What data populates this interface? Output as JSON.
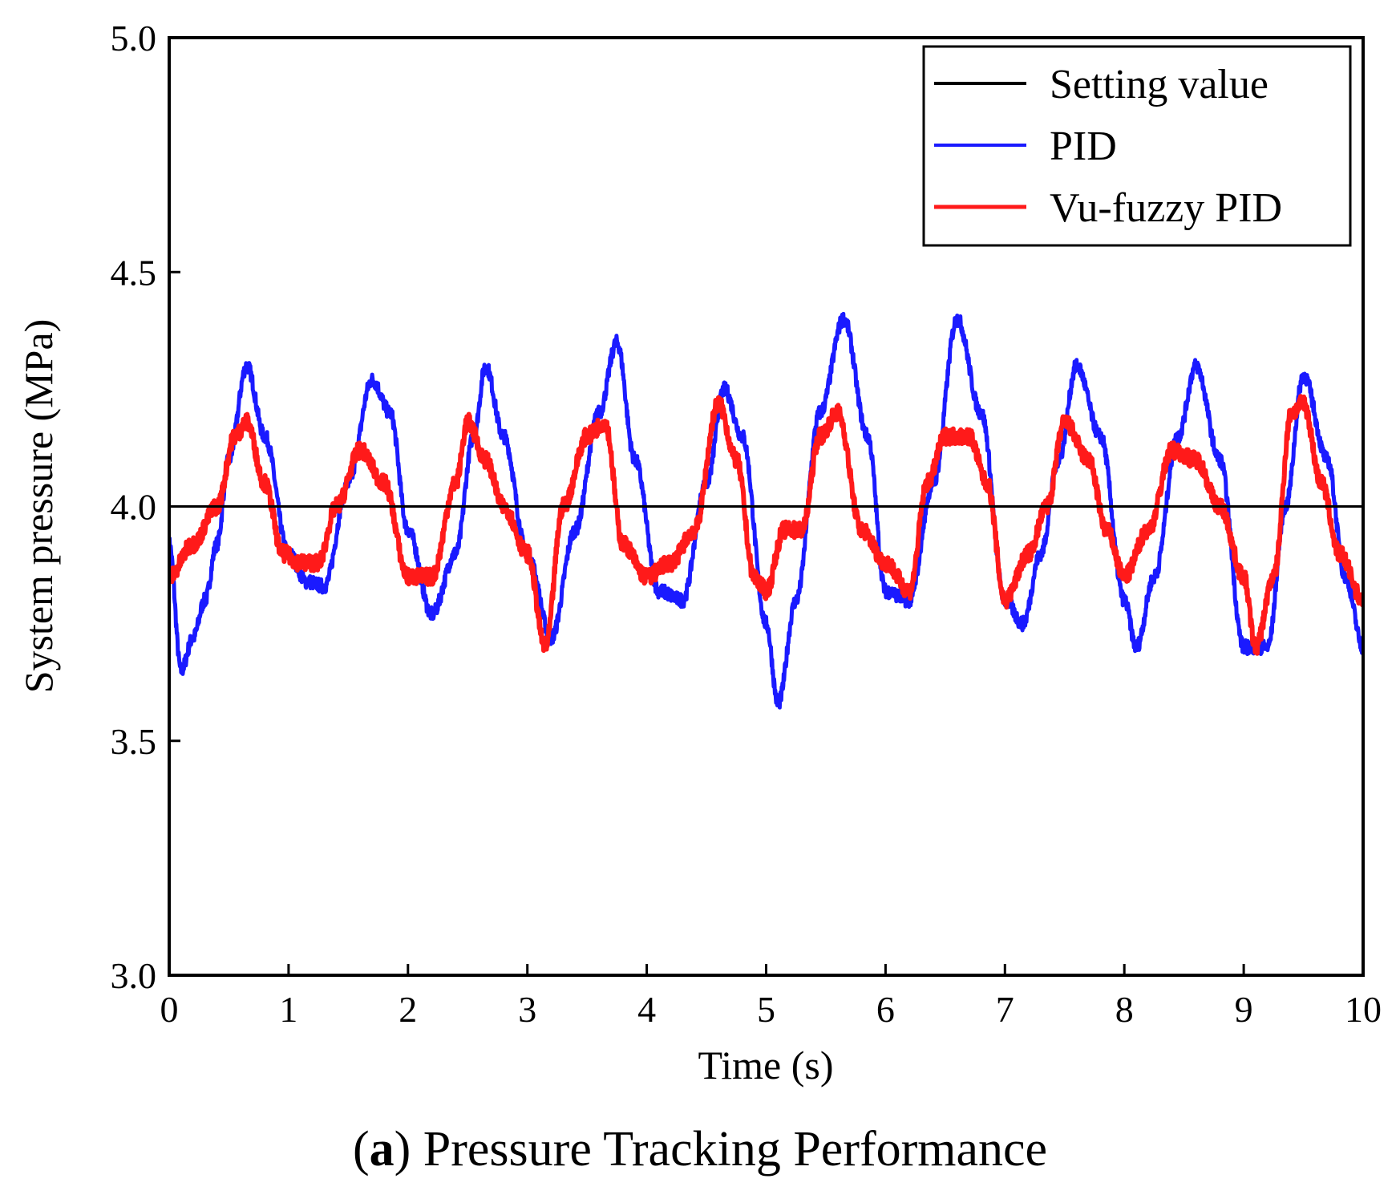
{
  "chart_data": {
    "type": "line",
    "title": "",
    "xlabel": "Time (s)",
    "ylabel": "System pressure (MPa)",
    "xlim": [
      0,
      10
    ],
    "ylim": [
      3.0,
      5.0
    ],
    "x_ticks": [
      "0",
      "1",
      "2",
      "3",
      "4",
      "5",
      "6",
      "7",
      "8",
      "9",
      "10"
    ],
    "y_ticks": [
      "3.0",
      "3.5",
      "4.0",
      "4.5",
      "5.0"
    ],
    "grid": false,
    "legend_position": "top-right",
    "series": [
      {
        "name": "Setting value",
        "color": "#000000",
        "x": [
          0,
          10
        ],
        "y": [
          4.0,
          4.0
        ]
      },
      {
        "name": "PID",
        "color": "#1a1aff",
        "x": [
          0,
          0.1,
          0.2,
          0.3,
          0.4,
          0.5,
          0.65,
          0.8,
          1.0,
          1.15,
          1.3,
          1.5,
          1.7,
          1.85,
          2.0,
          2.2,
          2.4,
          2.55,
          2.65,
          2.8,
          3.0,
          3.2,
          3.4,
          3.6,
          3.75,
          3.9,
          4.1,
          4.3,
          4.5,
          4.65,
          4.8,
          5.0,
          5.1,
          5.25,
          5.45,
          5.65,
          5.85,
          6.0,
          6.2,
          6.4,
          6.6,
          6.8,
          7.0,
          7.15,
          7.3,
          7.45,
          7.6,
          7.8,
          8.0,
          8.1,
          8.25,
          8.45,
          8.6,
          8.8,
          9.0,
          9.2,
          9.35,
          9.5,
          9.7,
          9.85,
          10.0
        ],
        "y": [
          3.92,
          3.65,
          3.72,
          3.8,
          3.92,
          4.1,
          4.3,
          4.15,
          3.9,
          3.84,
          3.83,
          4.05,
          4.27,
          4.2,
          3.95,
          3.77,
          3.9,
          4.15,
          4.3,
          4.15,
          3.9,
          3.72,
          3.95,
          4.2,
          4.35,
          4.1,
          3.82,
          3.8,
          4.05,
          4.25,
          4.15,
          3.75,
          3.58,
          3.8,
          4.2,
          4.4,
          4.15,
          3.82,
          3.8,
          4.05,
          4.4,
          4.2,
          3.8,
          3.75,
          3.9,
          4.1,
          4.3,
          4.15,
          3.8,
          3.7,
          3.85,
          4.15,
          4.3,
          4.1,
          3.7,
          3.7,
          4.0,
          4.28,
          4.1,
          3.85,
          3.7
        ]
      },
      {
        "name": "Vu-fuzzy PID",
        "color": "#ff1a1a",
        "x": [
          0,
          0.2,
          0.4,
          0.55,
          0.65,
          0.8,
          0.95,
          1.1,
          1.25,
          1.4,
          1.6,
          1.8,
          2.0,
          2.2,
          2.4,
          2.5,
          2.65,
          2.8,
          3.0,
          3.15,
          3.3,
          3.5,
          3.65,
          3.8,
          4.0,
          4.2,
          4.4,
          4.6,
          4.75,
          4.9,
          5.0,
          5.15,
          5.3,
          5.45,
          5.6,
          5.8,
          6.0,
          6.2,
          6.35,
          6.5,
          6.7,
          6.85,
          7.0,
          7.2,
          7.35,
          7.5,
          7.7,
          7.85,
          8.0,
          8.2,
          8.4,
          8.6,
          8.8,
          9.0,
          9.1,
          9.25,
          9.4,
          9.5,
          9.65,
          9.8,
          10.0
        ],
        "y": [
          3.85,
          3.92,
          4.0,
          4.15,
          4.18,
          4.05,
          3.9,
          3.88,
          3.88,
          4.0,
          4.12,
          4.05,
          3.85,
          3.85,
          4.05,
          4.18,
          4.1,
          4.0,
          3.9,
          3.7,
          4.0,
          4.15,
          4.18,
          3.92,
          3.85,
          3.88,
          3.95,
          4.22,
          4.1,
          3.85,
          3.82,
          3.95,
          3.95,
          4.15,
          4.2,
          3.95,
          3.88,
          3.82,
          4.05,
          4.15,
          4.15,
          4.05,
          3.8,
          3.9,
          4.0,
          4.18,
          4.1,
          3.95,
          3.85,
          3.95,
          4.12,
          4.1,
          4.0,
          3.85,
          3.7,
          3.85,
          4.2,
          4.22,
          4.05,
          3.9,
          3.8
        ]
      }
    ]
  },
  "caption": {
    "label": "a",
    "open_paren": "(",
    "close_paren": ")",
    "text": " Pressure Tracking Performance"
  }
}
